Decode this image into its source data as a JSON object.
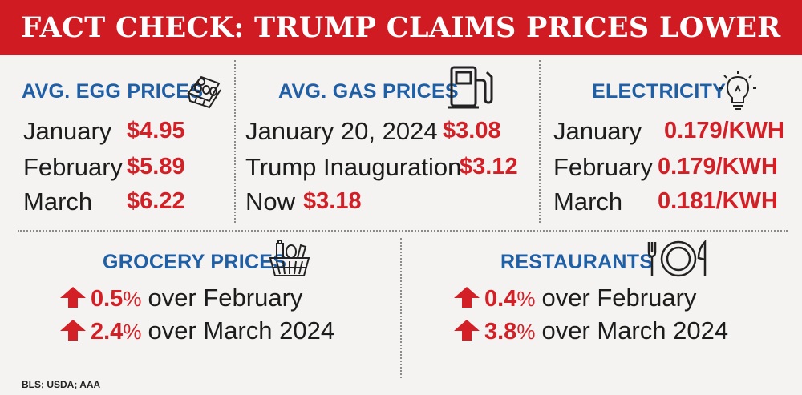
{
  "title": "FACT CHECK: TRUMP CLAIMS PRICES LOWER",
  "eggs": {
    "heading": "AVG. EGG PRICES",
    "icon": "egg-carton-icon",
    "rows": [
      {
        "label": "January",
        "value": "$4.95"
      },
      {
        "label": "February",
        "value": "$5.89"
      },
      {
        "label": "March",
        "value": "$6.22"
      }
    ]
  },
  "gas": {
    "heading": "AVG. GAS PRICES",
    "icon": "gas-pump-icon",
    "rows": [
      {
        "label": "January 20, 2024",
        "value": "$3.08"
      },
      {
        "label": "Trump Inauguration",
        "value": "$3.12"
      },
      {
        "label": "Now",
        "value": "$3.18"
      }
    ]
  },
  "electricity": {
    "heading": "ELECTRICITY",
    "icon": "lightbulb-icon",
    "rows": [
      {
        "label": "January",
        "value": "0.179/KWH"
      },
      {
        "label": "February",
        "value": "0.179/KWH"
      },
      {
        "label": "March",
        "value": "0.181/KWH"
      }
    ]
  },
  "grocery": {
    "heading": "GROCERY PRICES",
    "icon": "grocery-basket-icon",
    "rows": [
      {
        "value": "0.5",
        "unit": "%",
        "text": "over February"
      },
      {
        "value": "2.4",
        "unit": "%",
        "text": "over March 2024"
      }
    ]
  },
  "restaurants": {
    "heading": "RESTAURANTS",
    "icon": "plate-fork-knife-icon",
    "rows": [
      {
        "value": "0.4",
        "unit": "%",
        "text": "over February"
      },
      {
        "value": "3.8",
        "unit": "%",
        "text": "over March 2024"
      }
    ]
  },
  "source": "BLS; USDA; AAA",
  "colors": {
    "banner": "#cf1b21",
    "heading": "#1f5fa6",
    "value": "#d31f26"
  }
}
